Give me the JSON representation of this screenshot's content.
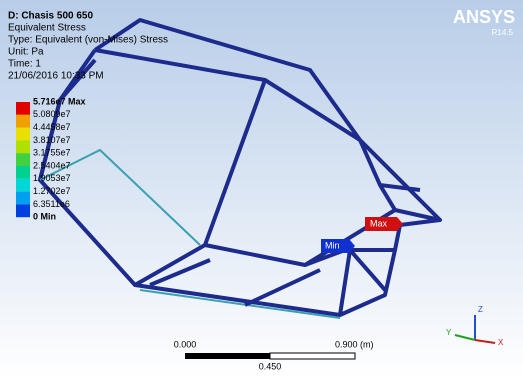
{
  "header": {
    "lines": [
      "D: Chasis 500 650",
      "Equivalent Stress",
      "Type: Equivalent (von-Mises) Stress",
      "Unit: Pa",
      "Time: 1",
      "21/06/2016 10:33 PM"
    ]
  },
  "logo": {
    "name": "ANSYS",
    "version": "R14.5"
  },
  "legend": {
    "labels": [
      "5.716e7 Max",
      "5.0809e7",
      "4.4458e7",
      "3.8107e7",
      "3.1755e7",
      "2.5404e7",
      "1.9053e7",
      "1.2702e7",
      "6.3511e6",
      "0 Min"
    ],
    "colors": [
      "#e00000",
      "#f0a000",
      "#e8e000",
      "#b0e000",
      "#40d040",
      "#00d090",
      "#00d8d8",
      "#00a0f0",
      "#0040e0"
    ]
  },
  "probes": {
    "max": "Max",
    "min": "Min"
  },
  "scale": {
    "left": "0.000",
    "right": "0.900 (m)",
    "middle": "0.450"
  },
  "triad": {
    "x": "X",
    "y": "Y",
    "z": "Z"
  }
}
